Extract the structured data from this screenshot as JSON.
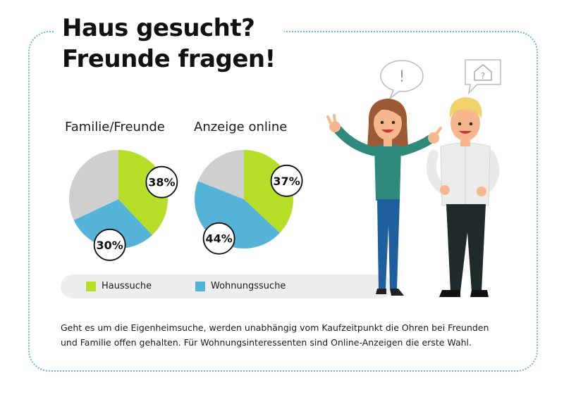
{
  "title": {
    "line1": "Haus gesucht?",
    "line2": "Freunde fragen!"
  },
  "colors": {
    "green": "#b7de26",
    "blue": "#55b3d8",
    "gray": "#cfcfcf",
    "border": "#6fb3d8"
  },
  "chart_data": [
    {
      "type": "pie",
      "title": "Familie/Freunde",
      "slices": [
        {
          "label": "Haussuche",
          "value": 38,
          "display": "38%",
          "color": "#b7de26"
        },
        {
          "label": "Wohnungssuche",
          "value": 30,
          "display": "30%",
          "color": "#55b3d8"
        },
        {
          "label": "",
          "value": 32,
          "display": "",
          "color": "#cfcfcf"
        }
      ]
    },
    {
      "type": "pie",
      "title": "Anzeige online",
      "slices": [
        {
          "label": "Haussuche",
          "value": 37,
          "display": "37%",
          "color": "#b7de26"
        },
        {
          "label": "Wohnungssuche",
          "value": 44,
          "display": "44%",
          "color": "#55b3d8"
        },
        {
          "label": "",
          "value": 19,
          "display": "",
          "color": "#cfcfcf"
        }
      ]
    }
  ],
  "legend": [
    {
      "label": "Haussuche",
      "color": "#b7de26"
    },
    {
      "label": "Wohnungssuche",
      "color": "#55b3d8"
    }
  ],
  "illustration": {
    "bubble_left": "!",
    "bubble_right": "?"
  },
  "description": "Geht es um die Eigenheimsuche, werden unabhängig vom Kaufzeitpunkt die Ohren bei Freunden und Familie offen gehalten. Für Wohnungsinteressenten sind Online-Anzeigen die erste Wahl."
}
